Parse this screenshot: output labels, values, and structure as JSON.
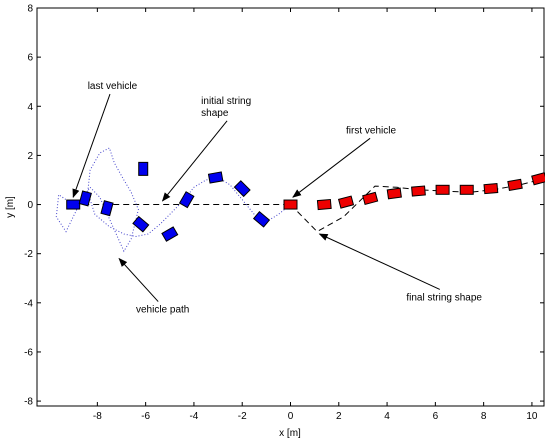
{
  "chart_data": {
    "type": "line",
    "xlabel": "x [m]",
    "ylabel": "y [m]",
    "xlim": [
      -10.5,
      10.5
    ],
    "ylim": [
      -8.2,
      8
    ],
    "xticks": [
      -8,
      -6,
      -4,
      -2,
      0,
      2,
      4,
      6,
      8,
      10
    ],
    "yticks": [
      -8,
      -6,
      -4,
      -2,
      0,
      2,
      4,
      6,
      8
    ],
    "grid": false,
    "colors": {
      "last_vehicles": "#0000ee",
      "first_vehicles": "#ee0000",
      "path": "#4444cc"
    },
    "series": [
      {
        "style": "dashed",
        "role": "initial-string-shape",
        "x": [
          -9,
          0
        ],
        "y": [
          0,
          0
        ]
      },
      {
        "style": "dashed",
        "role": "final-string-shape",
        "x": [
          0,
          1.1,
          2.2,
          3.5,
          4.4,
          5.3,
          6.3,
          7.4,
          8.4,
          9.5,
          10.5
        ],
        "y": [
          0,
          -1.1,
          -0.5,
          0.75,
          0.7,
          0.6,
          0.55,
          0.5,
          0.6,
          0.8,
          1.05
        ]
      },
      {
        "style": "dotted",
        "role": "vehicle-path",
        "x": [
          -9,
          -9.6,
          -9.7,
          -9.3,
          -8.9,
          -8.6,
          -8.3,
          -7.9,
          -7.4,
          -6.9,
          -6.6,
          -6.3,
          -6.6,
          -6.9,
          -7.3,
          -7.5,
          -7.9,
          -8.3,
          -8.4,
          -8.1,
          -7.5,
          -6.9,
          -6.4,
          -5.9,
          -5.4,
          -4.9,
          -4.4,
          -4,
          -3.5,
          -3,
          -2.5,
          -2,
          -1.5,
          -1,
          -0.5,
          0
        ],
        "y": [
          0,
          0.4,
          -0.5,
          -1.1,
          -0.3,
          0.3,
          0.7,
          0.3,
          -0.8,
          -1.9,
          -1.4,
          -0.2,
          0.5,
          1,
          1.7,
          2.3,
          2.1,
          1.4,
          0.5,
          -0.4,
          -0.9,
          -1.2,
          -1.3,
          -1.2,
          -0.8,
          -0.3,
          0.2,
          0.7,
          1,
          1.1,
          0.8,
          0.2,
          -0.4,
          -0.7,
          -0.4,
          0
        ]
      }
    ],
    "vehicles": [
      {
        "x": -9,
        "y": 0,
        "angle": 0,
        "color": "blue"
      },
      {
        "x": -8.5,
        "y": 0.25,
        "angle": -75,
        "color": "blue"
      },
      {
        "x": -7.6,
        "y": -0.15,
        "angle": -75,
        "color": "blue"
      },
      {
        "x": -6.1,
        "y": 1.45,
        "angle": -90,
        "color": "blue"
      },
      {
        "x": -6.2,
        "y": -0.8,
        "angle": 40,
        "color": "blue"
      },
      {
        "x": -5,
        "y": -1.2,
        "angle": -30,
        "color": "blue"
      },
      {
        "x": -4.3,
        "y": 0.2,
        "angle": -60,
        "color": "blue"
      },
      {
        "x": -3.1,
        "y": 1.1,
        "angle": -10,
        "color": "blue"
      },
      {
        "x": -2,
        "y": 0.65,
        "angle": 45,
        "color": "blue"
      },
      {
        "x": -1.2,
        "y": -0.6,
        "angle": 40,
        "color": "blue"
      },
      {
        "x": 0,
        "y": 0,
        "angle": 0,
        "color": "red"
      },
      {
        "x": 1.4,
        "y": 0,
        "angle": -5,
        "color": "red"
      },
      {
        "x": 2.3,
        "y": 0.1,
        "angle": -15,
        "color": "red"
      },
      {
        "x": 3.3,
        "y": 0.25,
        "angle": -15,
        "color": "red"
      },
      {
        "x": 4.3,
        "y": 0.45,
        "angle": -8,
        "color": "red"
      },
      {
        "x": 5.3,
        "y": 0.55,
        "angle": -5,
        "color": "red"
      },
      {
        "x": 6.3,
        "y": 0.6,
        "angle": 0,
        "color": "red"
      },
      {
        "x": 7.3,
        "y": 0.6,
        "angle": 0,
        "color": "red"
      },
      {
        "x": 8.3,
        "y": 0.65,
        "angle": -5,
        "color": "red"
      },
      {
        "x": 9.3,
        "y": 0.8,
        "angle": -10,
        "color": "red"
      },
      {
        "x": 10.3,
        "y": 1.05,
        "angle": -15,
        "color": "red"
      }
    ],
    "annotations": [
      {
        "text": "last vehicle",
        "label_x": -8.4,
        "label_y": 4.7,
        "arrow_to": [
          -9,
          0.3
        ]
      },
      {
        "text": "initial string\nshape",
        "label_x": -3.7,
        "label_y": 4.1,
        "arrow_to": [
          -5.3,
          0.15
        ]
      },
      {
        "text": "first vehicle",
        "label_x": 2.3,
        "label_y": 2.9,
        "arrow_to": [
          0.1,
          0.3
        ]
      },
      {
        "text": "vehicle path",
        "label_x": -6.4,
        "label_y": -4.4,
        "arrow_to": [
          -7.1,
          -2.2
        ]
      },
      {
        "text": "final string shape",
        "label_x": 4.8,
        "label_y": -3.9,
        "arrow_to": [
          1.2,
          -1.2
        ]
      }
    ]
  }
}
